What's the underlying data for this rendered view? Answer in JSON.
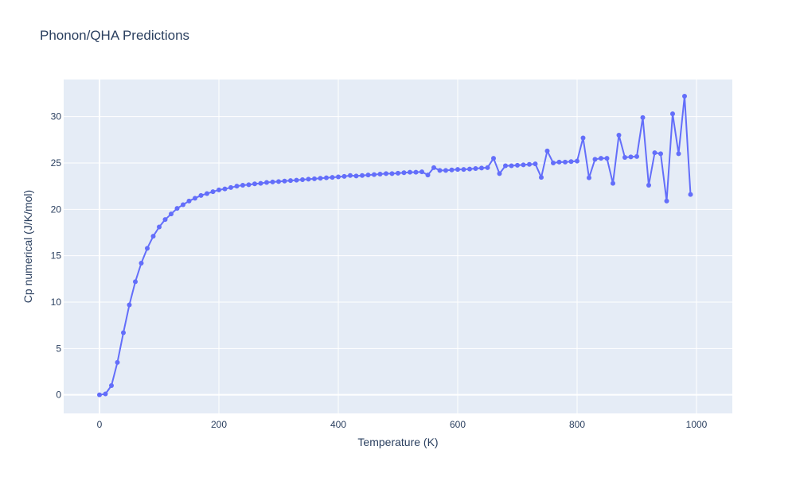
{
  "chart_data": {
    "type": "line",
    "title": "Phonon/QHA Predictions",
    "xlabel": "Temperature (K)",
    "ylabel": "Cp numerical (J/K/mol)",
    "xlim": [
      -60,
      1060
    ],
    "ylim": [
      -2,
      34
    ],
    "x_ticks": [
      0,
      200,
      400,
      600,
      800,
      1000
    ],
    "y_ticks": [
      0,
      5,
      10,
      15,
      20,
      25,
      30
    ],
    "grid": true,
    "legend": "none",
    "colors": {
      "line": "#636efa",
      "plot_bg": "#e5ecf6",
      "grid": "#ffffff",
      "text": "#2a3f5f"
    },
    "series": [
      {
        "mode": "lines+markers",
        "x": [
          0,
          10,
          20,
          30,
          40,
          50,
          60,
          70,
          80,
          90,
          100,
          110,
          120,
          130,
          140,
          150,
          160,
          170,
          180,
          190,
          200,
          210,
          220,
          230,
          240,
          250,
          260,
          270,
          280,
          290,
          300,
          310,
          320,
          330,
          340,
          350,
          360,
          370,
          380,
          390,
          400,
          410,
          420,
          430,
          440,
          450,
          460,
          470,
          480,
          490,
          500,
          510,
          520,
          530,
          540,
          550,
          560,
          570,
          580,
          590,
          600,
          610,
          620,
          630,
          640,
          650,
          660,
          670,
          680,
          690,
          700,
          710,
          720,
          730,
          740,
          750,
          760,
          770,
          780,
          790,
          800,
          810,
          820,
          830,
          840,
          850,
          860,
          870,
          880,
          890,
          900,
          910,
          920,
          930,
          940,
          950,
          960,
          970,
          980,
          990
        ],
        "y": [
          0,
          0.1,
          1.0,
          3.5,
          6.7,
          9.7,
          12.2,
          14.2,
          15.8,
          17.1,
          18.1,
          18.9,
          19.5,
          20.1,
          20.5,
          20.9,
          21.2,
          21.5,
          21.7,
          21.9,
          22.1,
          22.2,
          22.35,
          22.5,
          22.6,
          22.65,
          22.75,
          22.8,
          22.9,
          22.95,
          23.0,
          23.05,
          23.1,
          23.15,
          23.2,
          23.25,
          23.3,
          23.35,
          23.4,
          23.45,
          23.5,
          23.55,
          23.65,
          23.6,
          23.65,
          23.7,
          23.75,
          23.8,
          23.85,
          23.85,
          23.9,
          23.95,
          24.0,
          24.0,
          24.05,
          23.7,
          24.5,
          24.2,
          24.2,
          24.25,
          24.3,
          24.3,
          24.35,
          24.4,
          24.45,
          24.5,
          25.5,
          23.85,
          24.7,
          24.7,
          24.75,
          24.8,
          24.85,
          24.9,
          23.45,
          26.3,
          25.0,
          25.1,
          25.1,
          25.15,
          25.2,
          27.7,
          23.4,
          25.4,
          25.5,
          25.5,
          22.8,
          28.0,
          25.6,
          25.65,
          25.7,
          29.9,
          22.6,
          26.1,
          26.0,
          20.9,
          30.3,
          26.0,
          32.2,
          21.6
        ]
      }
    ]
  }
}
